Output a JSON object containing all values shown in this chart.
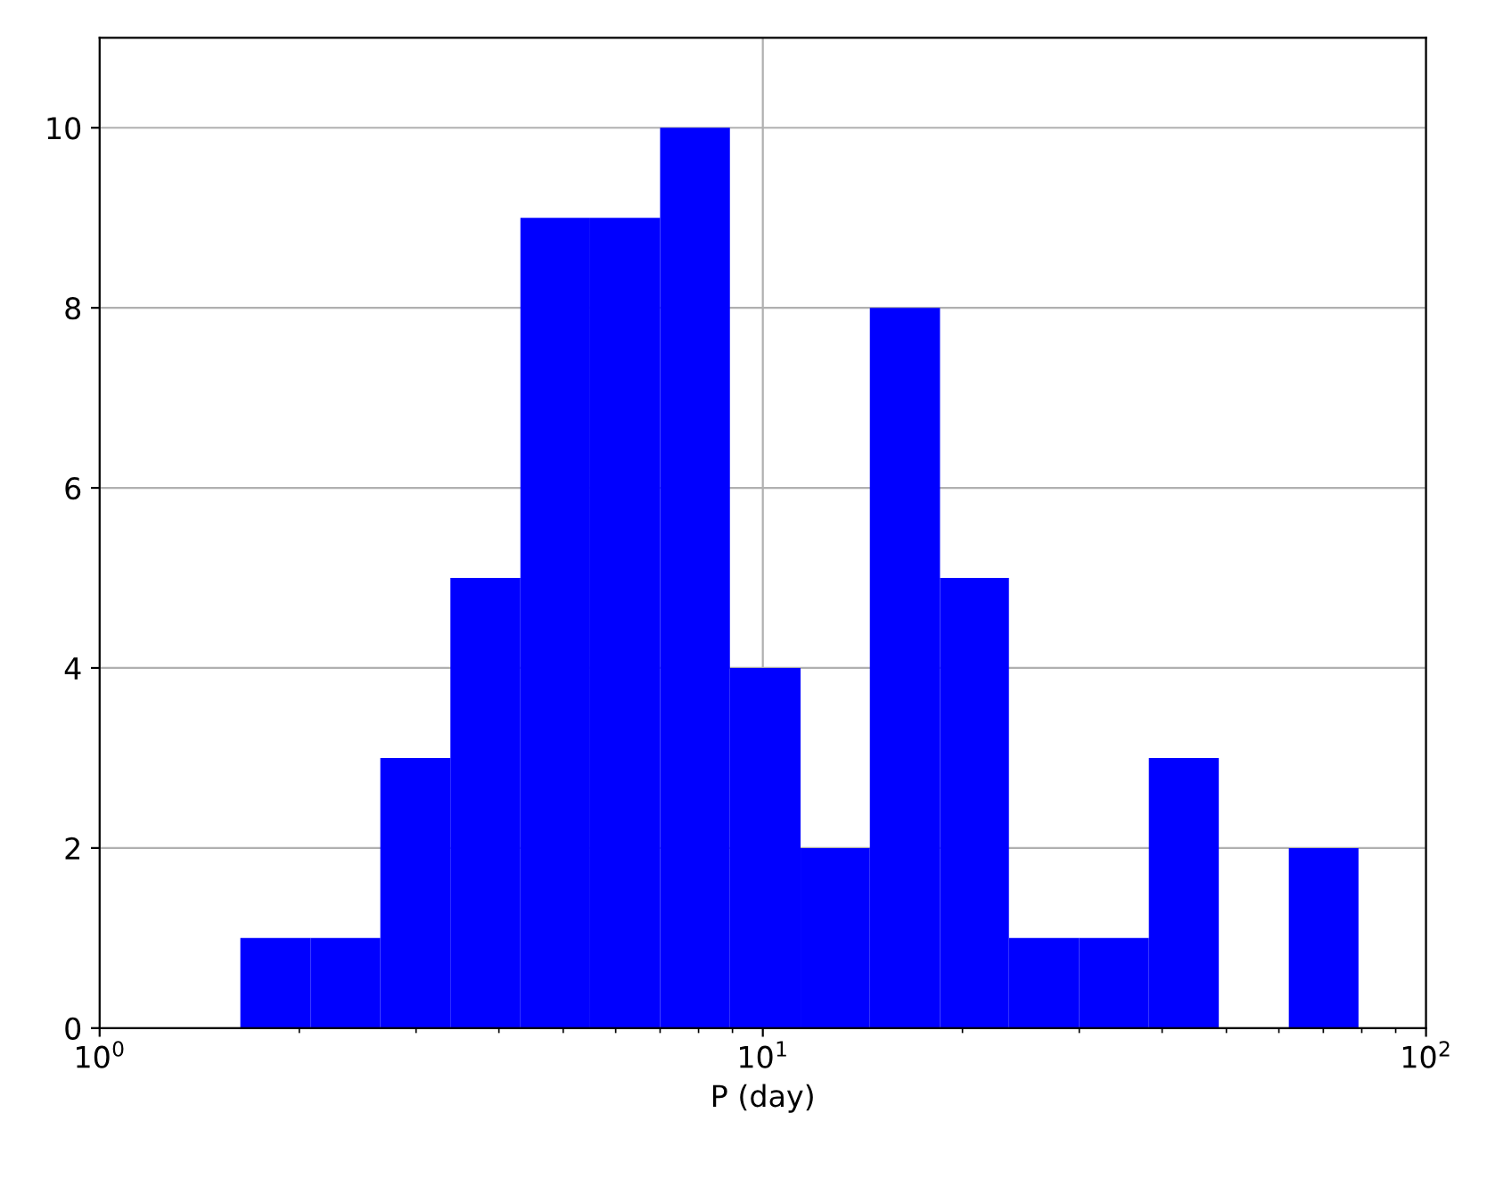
{
  "chart_data": {
    "type": "histogram",
    "xlabel": "P (day)",
    "bins": [
      1.63,
      2.08,
      2.65,
      3.38,
      4.31,
      5.49,
      7.0,
      8.92,
      11.4,
      14.5,
      18.5,
      23.5,
      30.0,
      38.2,
      48.7,
      62.1,
      79.1
    ],
    "values": [
      1,
      1,
      3,
      5,
      9,
      9,
      10,
      4,
      2,
      8,
      5,
      1,
      1,
      3,
      0,
      2
    ],
    "color": "#0000ff",
    "log": "x",
    "xlim": [
      1,
      100
    ],
    "xticks": [
      {
        "value": 1,
        "label": "10$^{0}$"
      },
      {
        "value": 10,
        "label": "10$^{1}$"
      },
      {
        "value": 100,
        "label": "10$^{2}$"
      }
    ],
    "ylim": [
      0,
      11
    ],
    "yticks": [
      0,
      2,
      4,
      6,
      8,
      10
    ],
    "grid": true
  }
}
